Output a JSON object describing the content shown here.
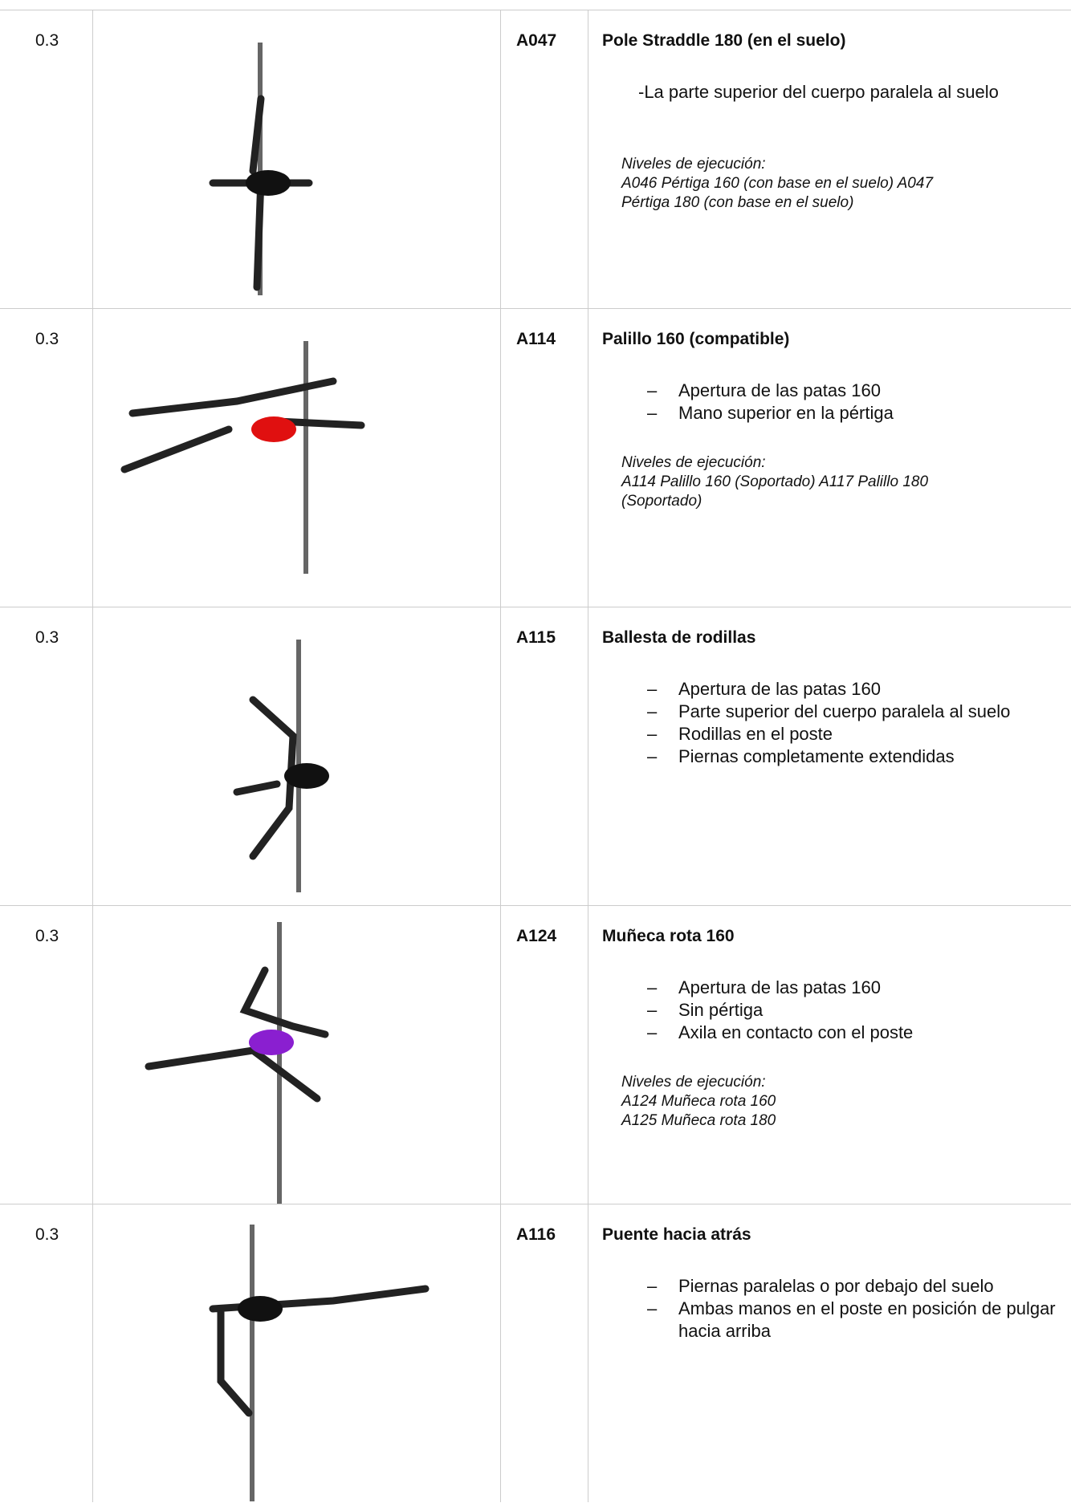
{
  "table": {
    "rows": [
      {
        "value": "0.3",
        "code": "A047",
        "title": "Pole Straddle 180 (en el suelo)",
        "description": "-La parte    superior del cuerpo paralela al suelo",
        "levels_heading": "Niveles de ejecución:",
        "levels": [
          "A046 Pértiga 160 (con base en el suelo) A047 Pértiga 180 (con base en el suelo)"
        ]
      },
      {
        "value": "0.3",
        "code": "A114",
        "title": "Palillo 160 (compatible)",
        "bullets": [
          "Apertura de las patas 160",
          "Mano superior en la pértiga"
        ],
        "levels_heading": "Niveles de ejecución:",
        "levels": [
          "A114 Palillo 160 (Soportado) A117 Palillo 180 (Soportado)"
        ]
      },
      {
        "value": "0.3",
        "code": "A115",
        "title": "Ballesta de rodillas",
        "bullets": [
          "Apertura de las patas 160",
          "Parte superior del cuerpo paralela al suelo",
          "Rodillas en el poste",
          "Piernas completamente extendidas"
        ]
      },
      {
        "value": "0.3",
        "code": "A124",
        "title": "Muñeca rota 160",
        "bullets": [
          "Apertura de las patas 160",
          "Sin pértiga",
          "Axila en contacto con el poste"
        ],
        "levels_heading": "Niveles de ejecución:",
        "levels": [
          "A124 Muñeca rota 160",
          "A125 Muñeca rota 180"
        ]
      },
      {
        "value": "0.3",
        "code": "A116",
        "title": "Puente hacia atrás",
        "bullets": [
          "Piernas paralelas o por debajo del suelo",
          "Ambas manos en el poste en posición de pulgar hacia arriba"
        ]
      }
    ]
  }
}
